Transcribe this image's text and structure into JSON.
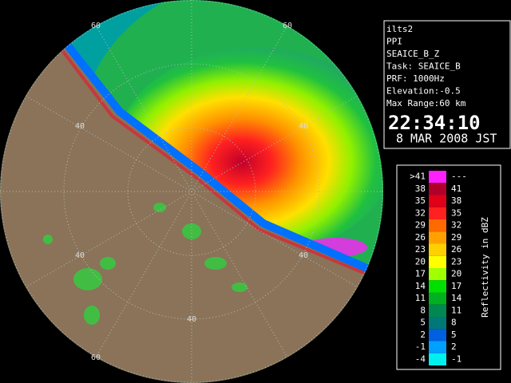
{
  "info": {
    "lines": [
      "ilts2",
      "PPI",
      "SEAICE_B_Z",
      "Task: SEAICE_B",
      "PRF: 1000Hz",
      "Elevation:-0.5",
      "Max Range:60 km"
    ],
    "time": "22:34:10",
    "date": "8 MAR 2008 JST"
  },
  "range_labels": [
    "60",
    "60",
    "40",
    "40",
    "40",
    "40",
    "40",
    "60"
  ],
  "legend": {
    "title": "Reflectivity in dBZ",
    "rows": [
      {
        "low": ">41",
        "high": "---",
        "color": "#ff20ff"
      },
      {
        "low": "38",
        "high": "41",
        "color": "#b0002a"
      },
      {
        "low": "35",
        "high": "38",
        "color": "#e00018"
      },
      {
        "low": "32",
        "high": "35",
        "color": "#ff2020"
      },
      {
        "low": "29",
        "high": "32",
        "color": "#ff6a00"
      },
      {
        "low": "26",
        "high": "29",
        "color": "#ffa000"
      },
      {
        "low": "23",
        "high": "26",
        "color": "#ffd000"
      },
      {
        "low": "20",
        "high": "23",
        "color": "#ffff00"
      },
      {
        "low": "17",
        "high": "20",
        "color": "#a0ff00"
      },
      {
        "low": "14",
        "high": "17",
        "color": "#00e000"
      },
      {
        "low": "11",
        "high": "14",
        "color": "#00b020"
      },
      {
        "low": "8",
        "high": "11",
        "color": "#008850"
      },
      {
        "low": "5",
        "high": "8",
        "color": "#007878"
      },
      {
        "low": "2",
        "high": "5",
        "color": "#0060e0"
      },
      {
        "low": "-1",
        "high": "2",
        "color": "#00a0ff"
      },
      {
        "low": "-4",
        "high": "-1",
        "color": "#00f0f0"
      }
    ]
  }
}
